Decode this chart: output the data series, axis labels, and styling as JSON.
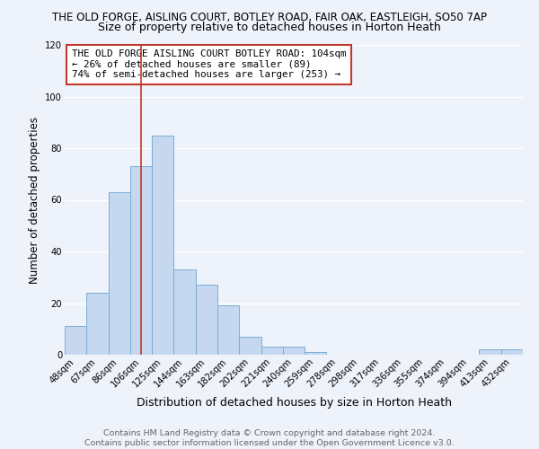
{
  "title1": "THE OLD FORGE, AISLING COURT, BOTLEY ROAD, FAIR OAK, EASTLEIGH, SO50 7AP",
  "title2": "Size of property relative to detached houses in Horton Heath",
  "xlabel": "Distribution of detached houses by size in Horton Heath",
  "ylabel": "Number of detached properties",
  "footer1": "Contains HM Land Registry data © Crown copyright and database right 2024.",
  "footer2": "Contains public sector information licensed under the Open Government Licence v3.0.",
  "bar_labels": [
    "48sqm",
    "67sqm",
    "86sqm",
    "106sqm",
    "125sqm",
    "144sqm",
    "163sqm",
    "182sqm",
    "202sqm",
    "221sqm",
    "240sqm",
    "259sqm",
    "278sqm",
    "298sqm",
    "317sqm",
    "336sqm",
    "355sqm",
    "374sqm",
    "394sqm",
    "413sqm",
    "432sqm"
  ],
  "bar_heights": [
    11,
    24,
    63,
    73,
    85,
    33,
    27,
    19,
    7,
    3,
    3,
    1,
    0,
    0,
    0,
    0,
    0,
    0,
    0,
    2,
    2
  ],
  "bar_color": "#c5d8f0",
  "bar_edge_color": "#7aafd4",
  "vline_x": 3.0,
  "vline_color": "#c0392b",
  "annotation_title": "THE OLD FORGE AISLING COURT BOTLEY ROAD: 104sqm",
  "annotation_line1": "← 26% of detached houses are smaller (89)",
  "annotation_line2": "74% of semi-detached houses are larger (253) →",
  "annotation_box_color": "#c0392b",
  "ylim": [
    0,
    120
  ],
  "yticks": [
    0,
    20,
    40,
    60,
    80,
    100,
    120
  ],
  "background_color": "#eef2fa",
  "grid_color": "#ffffff",
  "title1_fontsize": 8.5,
  "title2_fontsize": 9,
  "ylabel_fontsize": 8.5,
  "xlabel_fontsize": 9,
  "tick_fontsize": 7.2,
  "annotation_fontsize": 7.8,
  "footer_fontsize": 6.8
}
